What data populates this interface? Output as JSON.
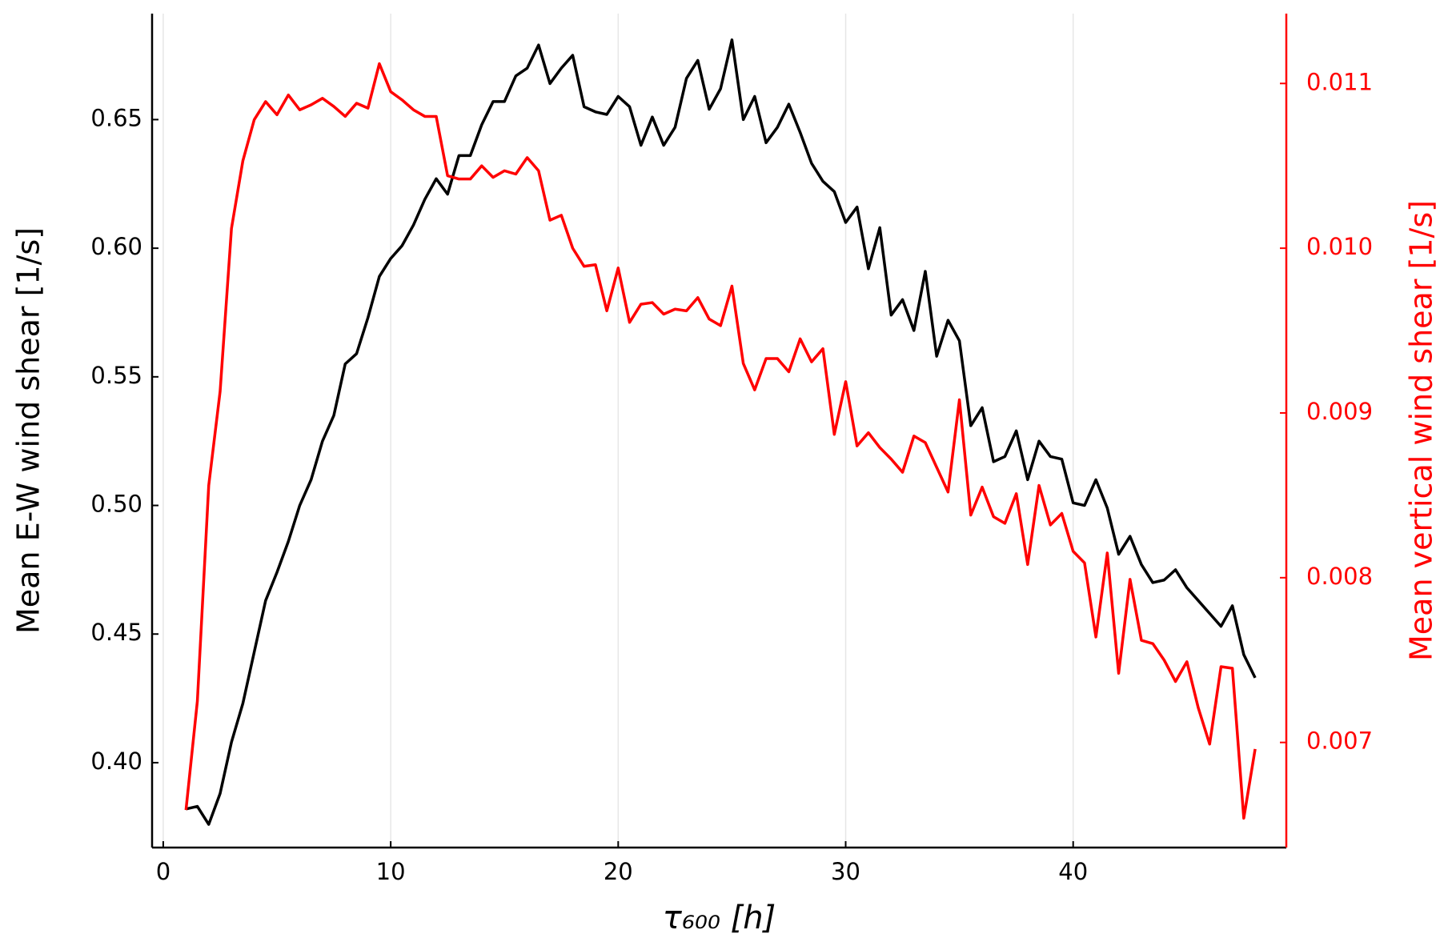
{
  "chart_data": {
    "type": "line",
    "x_label": "τ₆₀₀  [h]",
    "y_label": "Mean E-W wind shear [1/s]",
    "y2_label": "Mean vertical wind shear [1/s]",
    "x": [
      1,
      1.5,
      2,
      2.5,
      3,
      3.5,
      4,
      4.5,
      5,
      5.5,
      6,
      6.5,
      7,
      7.5,
      8,
      8.5,
      9,
      9.5,
      10,
      10.5,
      11,
      11.5,
      12,
      12.5,
      13,
      13.5,
      14,
      14.5,
      15,
      15.5,
      16,
      16.5,
      17,
      17.5,
      18,
      18.5,
      19,
      19.5,
      20,
      20.5,
      21,
      21.5,
      22,
      22.5,
      23,
      23.5,
      24,
      24.5,
      25,
      25.5,
      26,
      26.5,
      27,
      27.5,
      28,
      28.5,
      29,
      29.5,
      30,
      30.5,
      31,
      31.5,
      32,
      32.5,
      33,
      33.5,
      34,
      34.5,
      35,
      35.5,
      36,
      36.5,
      37,
      37.5,
      38,
      38.5,
      39,
      39.5,
      40,
      40.5,
      41,
      41.5,
      42,
      42.5,
      43,
      43.5,
      44,
      44.5,
      45,
      45.5,
      46,
      46.5,
      47,
      47.5,
      48
    ],
    "series": [
      {
        "color": "#000000",
        "values": [
          0.382,
          0.383,
          0.376,
          0.388,
          0.408,
          0.423,
          0.443,
          0.463,
          0.474,
          0.486,
          0.5,
          0.51,
          0.525,
          0.535,
          0.555,
          0.559,
          0.573,
          0.589,
          0.596,
          0.601,
          0.609,
          0.619,
          0.627,
          0.621,
          0.636,
          0.636,
          0.648,
          0.657,
          0.657,
          0.667,
          0.67,
          0.679,
          0.664,
          0.67,
          0.675,
          0.655,
          0.653,
          0.652,
          0.659,
          0.655,
          0.64,
          0.651,
          0.64,
          0.647,
          0.666,
          0.673,
          0.654,
          0.662,
          0.681,
          0.65,
          0.659,
          0.641,
          0.647,
          0.656,
          0.645,
          0.633,
          0.626,
          0.622,
          0.61,
          0.616,
          0.592,
          0.608,
          0.574,
          0.58,
          0.568,
          0.591,
          0.558,
          0.572,
          0.564,
          0.531,
          0.538,
          0.517,
          0.519,
          0.529,
          0.51,
          0.525,
          0.519,
          0.518,
          0.501,
          0.5,
          0.51,
          0.499,
          0.481,
          0.488,
          0.477,
          0.47,
          0.471,
          0.475,
          0.468,
          0.463,
          0.458,
          0.453,
          0.461,
          0.442,
          0.433
        ]
      },
      {
        "color": "#ff0000",
        "axis": "y2",
        "values": [
          0.00659,
          0.00725,
          0.00856,
          0.00913,
          0.01012,
          0.01053,
          0.01078,
          0.01089,
          0.01081,
          0.01093,
          0.01084,
          0.01087,
          0.01091,
          0.01086,
          0.0108,
          0.01088,
          0.01085,
          0.01112,
          0.01095,
          0.0109,
          0.01084,
          0.0108,
          0.0108,
          0.01044,
          0.01042,
          0.01042,
          0.0105,
          0.01043,
          0.01047,
          0.01045,
          0.01055,
          0.01047,
          0.01017,
          0.0102,
          0.01,
          0.00989,
          0.0099,
          0.00962,
          0.00988,
          0.00955,
          0.00966,
          0.00967,
          0.0096,
          0.00963,
          0.00962,
          0.0097,
          0.00957,
          0.00953,
          0.00977,
          0.0093,
          0.00914,
          0.00933,
          0.00933,
          0.00925,
          0.00945,
          0.00931,
          0.00939,
          0.00887,
          0.00919,
          0.0088,
          0.00888,
          0.00879,
          0.00872,
          0.00864,
          0.00886,
          0.00882,
          0.00867,
          0.00852,
          0.00908,
          0.00838,
          0.00855,
          0.00837,
          0.00833,
          0.00851,
          0.00808,
          0.00856,
          0.00832,
          0.00839,
          0.00816,
          0.00809,
          0.00764,
          0.00815,
          0.00742,
          0.00799,
          0.00762,
          0.0076,
          0.0075,
          0.00737,
          0.00749,
          0.00721,
          0.00699,
          0.00746,
          0.00745,
          0.00654,
          0.00696
        ]
      }
    ],
    "xlim": [
      -0.49,
      49.37
    ],
    "xticks": [
      0,
      10,
      20,
      30,
      40
    ],
    "ylim": [
      0.367,
      0.6912
    ],
    "yticks": [
      {
        "value": 0.4,
        "label": "0.40"
      },
      0.45,
      {
        "value": 0.5,
        "label": "0.50"
      },
      0.55,
      {
        "value": 0.6,
        "label": "0.60"
      },
      0.65
    ],
    "y2lim": [
      0.006362,
      0.011424
    ],
    "y2ticks": [
      0.007,
      0.008,
      0.009,
      {
        "value": 0.01,
        "label": "0.010"
      },
      0.011
    ],
    "y2_color": "#ff0000",
    "grid": "x"
  }
}
